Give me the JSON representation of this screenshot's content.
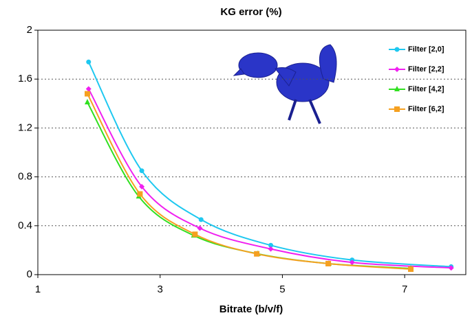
{
  "chart_data": {
    "type": "line",
    "title": "KG error (%)",
    "x_label": "Bitrate (b/v/f)",
    "xlim": [
      1,
      8
    ],
    "xticks": [
      1,
      3,
      5,
      7
    ],
    "ylim": [
      0,
      2
    ],
    "yticks": [
      0,
      0.4,
      0.8,
      1.2,
      1.6,
      2
    ],
    "grid": true,
    "legend": "upper right",
    "series": [
      {
        "name": "Filter [2,0]",
        "color": "#1ec8f0",
        "marker": "circle",
        "x": [
          1.83,
          2.7,
          3.67,
          4.81,
          6.14,
          7.76
        ],
        "values": [
          1.74,
          0.85,
          0.45,
          0.24,
          0.12,
          0.065
        ]
      },
      {
        "name": "Filter [2,2]",
        "color": "#f020f0",
        "marker": "diamond",
        "x": [
          1.83,
          2.7,
          3.65,
          4.81,
          6.14,
          7.76
        ],
        "values": [
          1.52,
          0.72,
          0.38,
          0.21,
          0.1,
          0.055
        ]
      },
      {
        "name": "Filter [4,2]",
        "color": "#30e020",
        "marker": "triangle",
        "x": [
          1.81,
          2.65,
          3.55,
          4.6,
          5.76,
          7.1
        ],
        "values": [
          1.41,
          0.64,
          0.32,
          0.17,
          0.09,
          0.05
        ]
      },
      {
        "name": "Filter [6,2]",
        "color": "#f5a020",
        "marker": "square",
        "x": [
          1.81,
          2.67,
          3.57,
          4.58,
          5.75,
          7.1
        ],
        "values": [
          1.48,
          0.66,
          0.33,
          0.17,
          0.09,
          0.045
        ]
      }
    ]
  }
}
